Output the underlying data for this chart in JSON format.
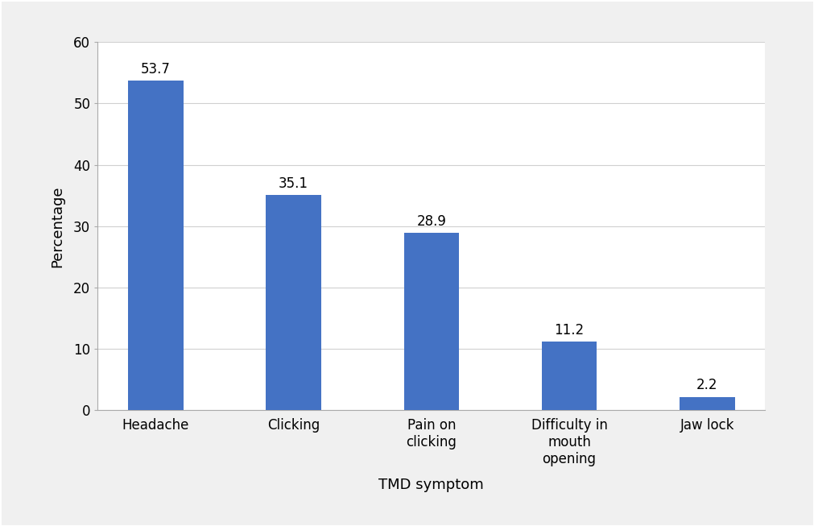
{
  "categories": [
    "Headache",
    "Clicking",
    "Pain on\nclicking",
    "Difficulty in\nmouth\nopening",
    "Jaw lock"
  ],
  "values": [
    53.7,
    35.1,
    28.9,
    11.2,
    2.2
  ],
  "bar_color": "#4472C4",
  "xlabel": "TMD symptom",
  "ylabel": "Percentage",
  "ylim": [
    0,
    60
  ],
  "yticks": [
    0,
    10,
    20,
    30,
    40,
    50,
    60
  ],
  "label_fontsize": 13,
  "tick_fontsize": 12,
  "value_fontsize": 12,
  "bar_width": 0.4,
  "background_color": "#ffffff",
  "grid_color": "#d0d0d0",
  "outer_bg": "#f0f0f0"
}
